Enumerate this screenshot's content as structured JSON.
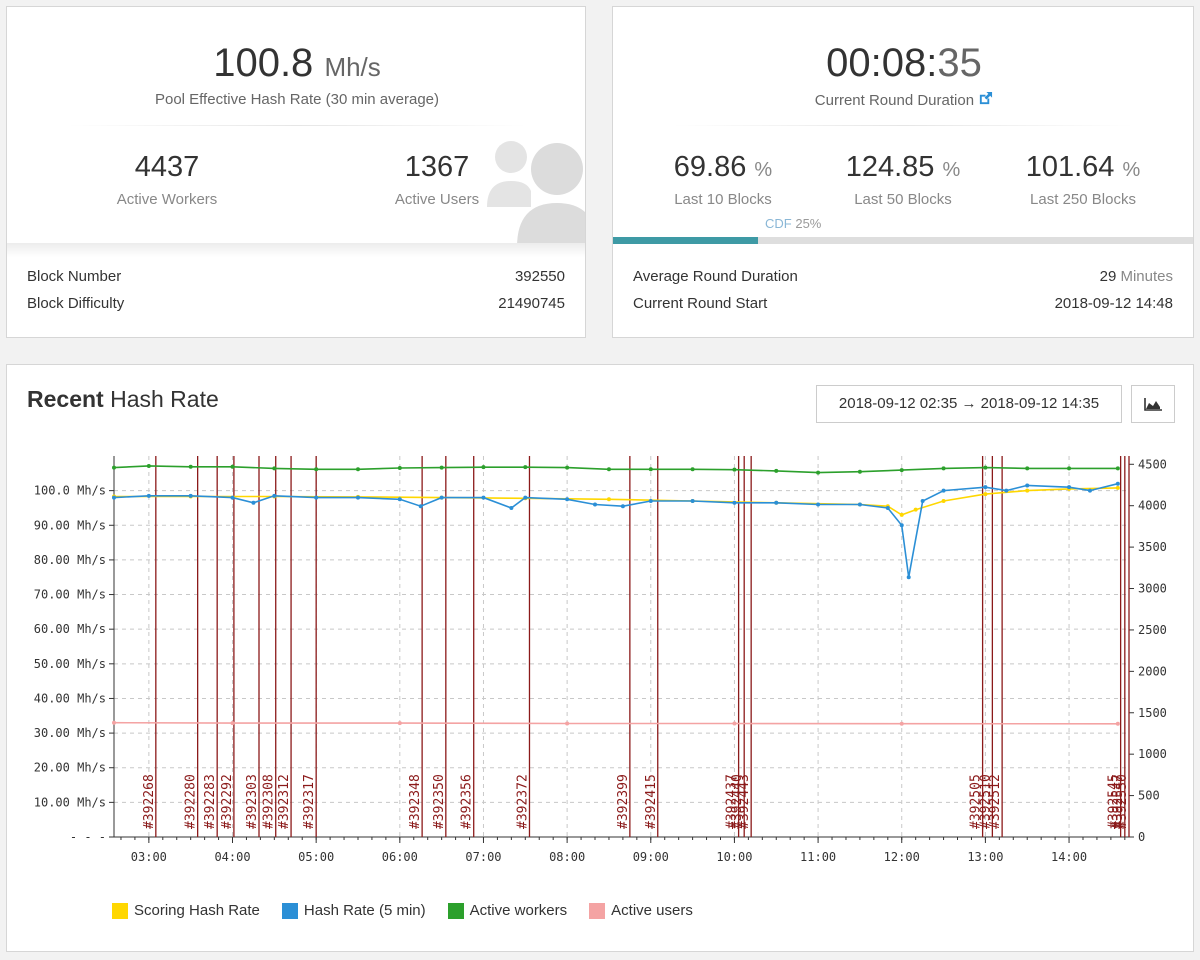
{
  "pool": {
    "hashrate_value": "100.8",
    "hashrate_unit": "Mh/s",
    "hashrate_caption": "Pool Effective Hash Rate (30 min average)",
    "active_workers_value": "4437",
    "active_workers_label": "Active Workers",
    "active_users_value": "1367",
    "active_users_label": "Active Users",
    "block_number_label": "Block Number",
    "block_number_value": "392550",
    "block_difficulty_label": "Block Difficulty",
    "block_difficulty_value": "21490745"
  },
  "round": {
    "duration_main": "00:08:",
    "duration_sec": "35",
    "duration_caption": "Current Round Duration",
    "last10_value": "69.86",
    "last10_label": "Last 10 Blocks",
    "last50_value": "124.85",
    "last50_label": "Last 50 Blocks",
    "last250_value": "101.64",
    "last250_label": "Last 250 Blocks",
    "percent_unit": "%",
    "cdf_label": "CDF",
    "cdf_value": "25%",
    "cdf_fraction": 0.25,
    "avg_duration_label": "Average Round Duration",
    "avg_duration_value": "29",
    "avg_duration_unit": "Minutes",
    "round_start_label": "Current Round Start",
    "round_start_value": "2018-09-12 14:48"
  },
  "recent": {
    "title_bold": "Recent",
    "title_rest": "Hash Rate",
    "date_range": "2018-09-12 02:35 → 2018-09-12 14:35",
    "chart_button_icon": "area-chart-icon"
  },
  "chart_data": {
    "type": "line",
    "x_range": [
      "02:35",
      "14:43"
    ],
    "x_ticks": [
      "03:00",
      "04:00",
      "05:00",
      "06:00",
      "07:00",
      "08:00",
      "09:00",
      "10:00",
      "11:00",
      "12:00",
      "13:00",
      "14:00"
    ],
    "y_left_ticks": [
      "- - -",
      "10.00 Mh/s",
      "20.00 Mh/s",
      "30.00 Mh/s",
      "40.00 Mh/s",
      "50.00 Mh/s",
      "60.00 Mh/s",
      "70.00 Mh/s",
      "80.00 Mh/s",
      "90.00 Mh/s",
      "100.0 Mh/s"
    ],
    "y_left_range": [
      0,
      110
    ],
    "y_right_ticks": [
      "0",
      "500",
      "1000",
      "1500",
      "2000",
      "2500",
      "3000",
      "3500",
      "4000",
      "4500"
    ],
    "y_right_range": [
      0,
      4600
    ],
    "grid": true,
    "legend_position": "bottom-left",
    "series": [
      {
        "name": "Scoring Hash Rate",
        "color": "#ffd700",
        "axis": "left",
        "x": [
          "02:35",
          "03:30",
          "04:30",
          "05:30",
          "06:30",
          "07:30",
          "08:30",
          "09:30",
          "10:30",
          "11:30",
          "11:50",
          "12:00",
          "12:10",
          "12:30",
          "13:00",
          "13:30",
          "14:00",
          "14:35"
        ],
        "values": [
          98.3,
          98.3,
          98.3,
          98.2,
          98.0,
          97.8,
          97.5,
          97.0,
          96.5,
          96.0,
          95.5,
          93.0,
          94.5,
          97.0,
          99.0,
          100.0,
          100.5,
          100.8
        ]
      },
      {
        "name": "Hash Rate (5 min)",
        "color": "#2b8fd6",
        "axis": "left",
        "x": [
          "02:35",
          "03:00",
          "03:30",
          "04:00",
          "04:15",
          "04:30",
          "05:00",
          "05:30",
          "06:00",
          "06:15",
          "06:30",
          "07:00",
          "07:20",
          "07:30",
          "08:00",
          "08:20",
          "08:40",
          "09:00",
          "09:30",
          "10:00",
          "10:30",
          "11:00",
          "11:30",
          "11:50",
          "12:00",
          "12:05",
          "12:15",
          "12:30",
          "13:00",
          "13:15",
          "13:30",
          "14:00",
          "14:15",
          "14:35"
        ],
        "values": [
          98.0,
          98.5,
          98.5,
          98.0,
          96.5,
          98.5,
          98.0,
          98.0,
          97.5,
          95.5,
          98.0,
          98.0,
          95.0,
          98.0,
          97.5,
          96.0,
          95.5,
          97.0,
          97.0,
          96.5,
          96.5,
          96.0,
          96.0,
          95.0,
          90.0,
          75.0,
          97.0,
          100.0,
          101.0,
          100.0,
          101.5,
          101.0,
          100.0,
          102.0
        ]
      },
      {
        "name": "Active workers",
        "color": "#2ca02c",
        "axis": "right",
        "x": [
          "02:35",
          "03:00",
          "03:30",
          "04:00",
          "04:30",
          "05:00",
          "05:30",
          "06:00",
          "06:30",
          "07:00",
          "07:30",
          "08:00",
          "08:30",
          "09:00",
          "09:30",
          "10:00",
          "10:30",
          "11:00",
          "11:30",
          "12:00",
          "12:30",
          "13:00",
          "13:30",
          "14:00",
          "14:35"
        ],
        "values": [
          4460,
          4480,
          4470,
          4470,
          4450,
          4440,
          4440,
          4455,
          4460,
          4465,
          4465,
          4460,
          4440,
          4440,
          4440,
          4435,
          4420,
          4400,
          4410,
          4430,
          4450,
          4460,
          4450,
          4450,
          4450
        ]
      },
      {
        "name": "Active users",
        "color": "#f4a3a3",
        "axis": "right",
        "x": [
          "02:35",
          "04:00",
          "06:00",
          "08:00",
          "10:00",
          "12:00",
          "14:35"
        ],
        "values": [
          1380,
          1375,
          1375,
          1370,
          1370,
          1368,
          1367
        ]
      }
    ],
    "blocks": [
      {
        "label": "#392268",
        "time": "03:05"
      },
      {
        "label": "#392280",
        "time": "03:35"
      },
      {
        "label": "#392283",
        "time": "03:49"
      },
      {
        "label": "#392292",
        "time": "04:01"
      },
      {
        "label": "#392303",
        "time": "04:19"
      },
      {
        "label": "#392308",
        "time": "04:31"
      },
      {
        "label": "#392312",
        "time": "04:42"
      },
      {
        "label": "#392317",
        "time": "05:00"
      },
      {
        "label": "#392348",
        "time": "06:16"
      },
      {
        "label": "#392350",
        "time": "06:33"
      },
      {
        "label": "#392356",
        "time": "06:53"
      },
      {
        "label": "#392372",
        "time": "07:33"
      },
      {
        "label": "#392399",
        "time": "08:45"
      },
      {
        "label": "#392415",
        "time": "09:05"
      },
      {
        "label": "#392437",
        "time": "10:03"
      },
      {
        "label": "#392440",
        "time": "10:07"
      },
      {
        "label": "#392443",
        "time": "10:12"
      },
      {
        "label": "#392505",
        "time": "12:58"
      },
      {
        "label": "#392510",
        "time": "13:05"
      },
      {
        "label": "#392512",
        "time": "13:12"
      },
      {
        "label": "#392545",
        "time": "14:37"
      },
      {
        "label": "#392547",
        "time": "14:40"
      },
      {
        "label": "#392550",
        "time": "14:43"
      }
    ]
  }
}
